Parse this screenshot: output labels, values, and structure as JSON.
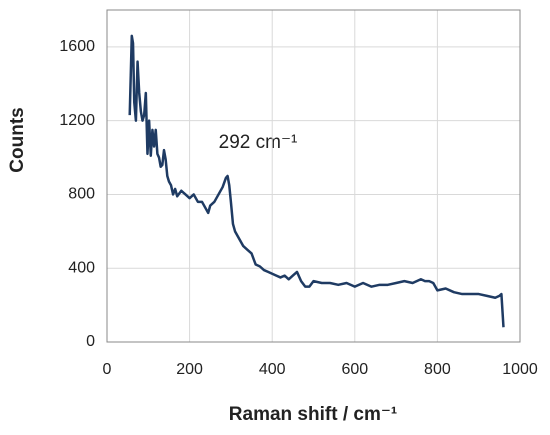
{
  "chart_data": {
    "type": "line",
    "xlabel": "Raman shift / cm⁻¹",
    "ylabel": "Counts",
    "annotation": "292 cm⁻¹",
    "xlim": [
      0,
      1000
    ],
    "xticks": [
      0,
      200,
      400,
      600,
      800,
      1000
    ],
    "ylim": [
      0,
      1800
    ],
    "yticks": [
      0,
      400,
      800,
      1200,
      1600
    ],
    "grid": true,
    "series": [
      {
        "color": "#1f3b63",
        "x": [
          55,
          60,
          63,
          66,
          70,
          74,
          78,
          82,
          86,
          90,
          94,
          98,
          102,
          106,
          110,
          114,
          118,
          122,
          126,
          130,
          134,
          138,
          142,
          146,
          150,
          155,
          160,
          165,
          170,
          180,
          190,
          200,
          210,
          220,
          230,
          240,
          245,
          250,
          260,
          270,
          280,
          288,
          292,
          296,
          300,
          305,
          310,
          320,
          330,
          340,
          350,
          360,
          370,
          380,
          390,
          400,
          410,
          420,
          430,
          440,
          450,
          460,
          470,
          480,
          490,
          500,
          520,
          540,
          560,
          580,
          600,
          620,
          640,
          660,
          680,
          700,
          720,
          740,
          760,
          770,
          780,
          790,
          800,
          820,
          840,
          860,
          880,
          900,
          920,
          940,
          950,
          955,
          960
        ],
        "values": [
          1230,
          1660,
          1620,
          1300,
          1200,
          1520,
          1350,
          1250,
          1200,
          1230,
          1350,
          1020,
          1200,
          1010,
          1150,
          1060,
          1150,
          1020,
          1000,
          950,
          960,
          1040,
          990,
          900,
          870,
          850,
          800,
          830,
          790,
          820,
          800,
          780,
          800,
          760,
          760,
          720,
          700,
          740,
          760,
          800,
          840,
          890,
          900,
          850,
          760,
          640,
          600,
          560,
          520,
          500,
          480,
          420,
          410,
          390,
          380,
          370,
          360,
          350,
          360,
          340,
          360,
          380,
          330,
          300,
          300,
          330,
          320,
          320,
          310,
          320,
          300,
          320,
          300,
          310,
          310,
          320,
          330,
          320,
          340,
          330,
          330,
          320,
          280,
          290,
          270,
          260,
          260,
          260,
          250,
          240,
          250,
          260,
          80
        ]
      }
    ]
  }
}
